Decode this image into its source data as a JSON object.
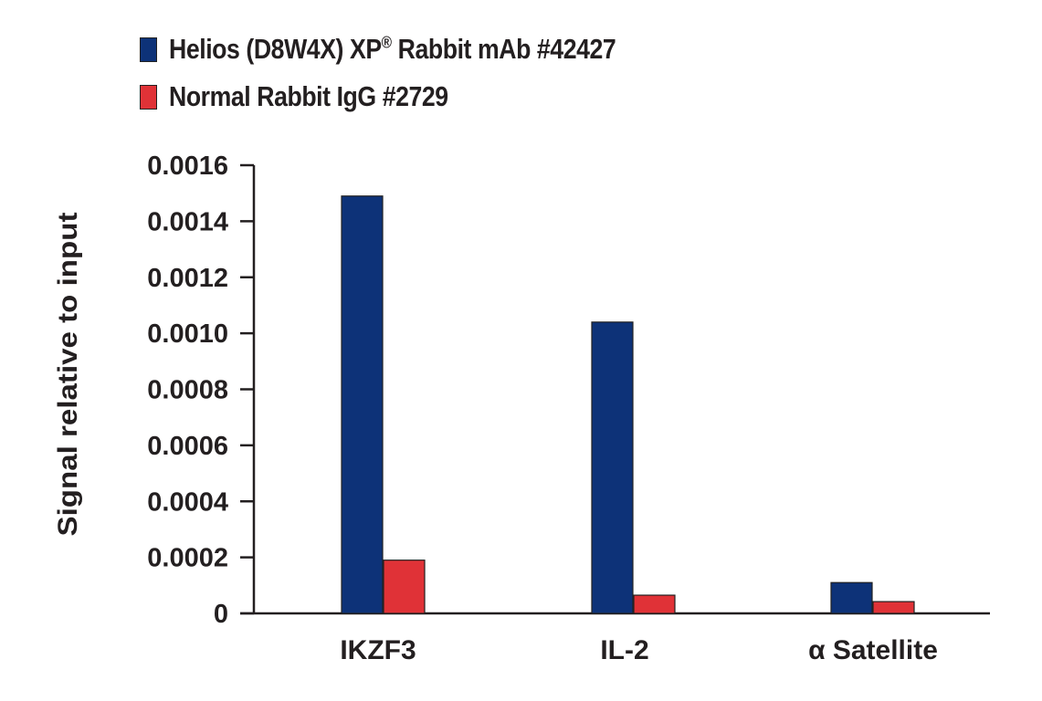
{
  "chart_data": {
    "type": "bar",
    "title": "",
    "xlabel": "",
    "ylabel": "Signal relative to input",
    "ylim": [
      0,
      0.0016
    ],
    "yticks": [
      "0",
      "0.0002",
      "0.0004",
      "0.0006",
      "0.0008",
      "0.0010",
      "0.0012",
      "0.0014",
      "0.0016"
    ],
    "ytick_values": [
      0,
      0.0002,
      0.0004,
      0.0006,
      0.0008,
      0.001,
      0.0012,
      0.0014,
      0.0016
    ],
    "grid": false,
    "legend_position": "top-left",
    "categories": [
      "IKZF3",
      "IL-2",
      "α Satellite"
    ],
    "series": [
      {
        "name": "Helios (D8W4X) XP® Rabbit mAb #42427",
        "color": "#0d3278",
        "values": [
          0.00149,
          0.00104,
          0.00011
        ]
      },
      {
        "name": "Normal Rabbit IgG #2729",
        "color": "#e03237",
        "values": [
          0.00019,
          6.5e-05,
          4.2e-05
        ]
      }
    ]
  },
  "legend": {
    "items": [
      {
        "text": "Helios (D8W4X) XP",
        "sup": "®",
        "text_after": " Rabbit mAb #42427",
        "color": "#0d3278"
      },
      {
        "text": "Normal Rabbit IgG #2729",
        "sup": "",
        "text_after": "",
        "color": "#e03237"
      }
    ]
  }
}
